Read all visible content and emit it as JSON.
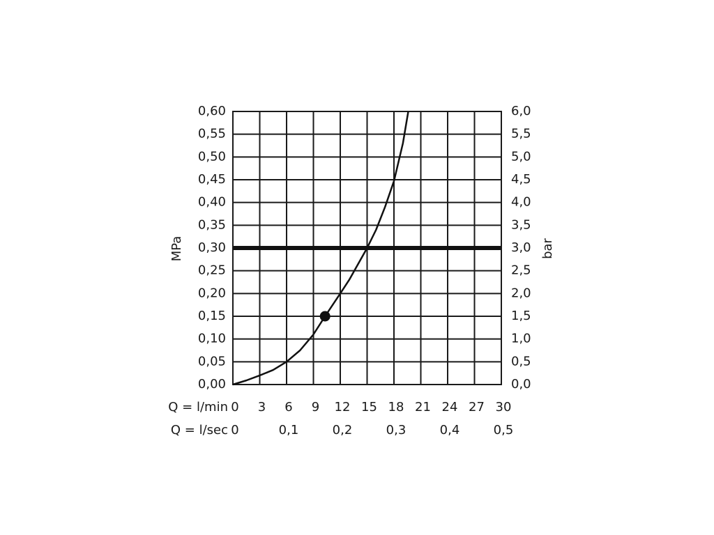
{
  "chart_data": {
    "type": "line",
    "y_label": "MPa",
    "y2_label": "bar",
    "x_label": "Q = l/min",
    "x2_label": "Q = l/sec",
    "xlim": [
      0,
      30
    ],
    "xticks": [
      0,
      3,
      6,
      9,
      12,
      15,
      18,
      21,
      24,
      27,
      30
    ],
    "x2lim": [
      0,
      0.5
    ],
    "x2ticks": [
      0,
      {
        "value": 0.1,
        "label": "0,1"
      },
      {
        "value": 0.2,
        "label": "0,2"
      },
      {
        "value": 0.3,
        "label": "0,3"
      },
      {
        "value": 0.4,
        "label": "0,4"
      },
      {
        "value": 0.5,
        "label": "0,5"
      }
    ],
    "ylim": [
      0,
      0.6
    ],
    "yticks": [
      {
        "value": 0,
        "label": "0,00"
      },
      {
        "value": 0.05,
        "label": "0,05"
      },
      {
        "value": 0.1,
        "label": "0,10"
      },
      {
        "value": 0.15,
        "label": "0,15"
      },
      {
        "value": 0.2,
        "label": "0,20"
      },
      {
        "value": 0.25,
        "label": "0,25"
      },
      {
        "value": 0.3,
        "label": "0,30"
      },
      {
        "value": 0.35,
        "label": "0,35"
      },
      {
        "value": 0.4,
        "label": "0,40"
      },
      {
        "value": 0.45,
        "label": "0,45"
      },
      {
        "value": 0.5,
        "label": "0,50"
      },
      {
        "value": 0.55,
        "label": "0,55"
      },
      {
        "value": 0.6,
        "label": "0,60"
      }
    ],
    "y2lim": [
      0,
      6
    ],
    "y2ticks": [
      {
        "value": 0,
        "label": "0,0"
      },
      {
        "value": 0.5,
        "label": "0,5"
      },
      {
        "value": 1,
        "label": "1,0"
      },
      {
        "value": 1.5,
        "label": "1,5"
      },
      {
        "value": 2,
        "label": "2,0"
      },
      {
        "value": 2.5,
        "label": "2,5"
      },
      {
        "value": 3,
        "label": "3,0"
      },
      {
        "value": 3.5,
        "label": "3,5"
      },
      {
        "value": 4,
        "label": "4,0"
      },
      {
        "value": 4.5,
        "label": "4,5"
      },
      {
        "value": 5,
        "label": "5,0"
      },
      {
        "value": 5.5,
        "label": "5,5"
      },
      {
        "value": 6,
        "label": "6,0"
      }
    ],
    "grid": true,
    "series": [
      {
        "color": "#111111",
        "x": [
          0,
          1.5,
          3,
          4.5,
          6,
          7.5,
          9,
          10.3,
          12,
          13,
          14,
          15,
          16,
          17,
          18,
          19,
          19.6
        ],
        "values": [
          0,
          0.009,
          0.02,
          0.032,
          0.05,
          0.075,
          0.11,
          0.15,
          0.2,
          0.23,
          0.265,
          0.3,
          0.34,
          0.39,
          0.447,
          0.53,
          0.6
        ]
      }
    ],
    "marker": {
      "x": 10.3,
      "y": 0.15
    },
    "reference_line": 0.3,
    "drop_line": 15
  }
}
